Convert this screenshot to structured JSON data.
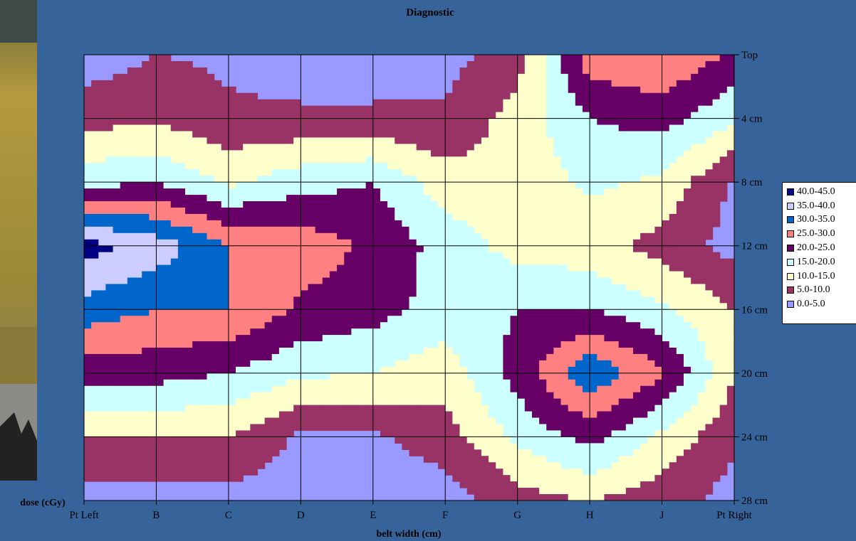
{
  "chart_data": {
    "type": "contour",
    "title": "Diagnostic",
    "xlabel": "belt width (cm)",
    "ylabel": "dose (cGy)",
    "x_categories": [
      "Pt Left",
      "B",
      "C",
      "D",
      "E",
      "F",
      "G",
      "H",
      "J",
      "Pt Right"
    ],
    "y_categories": [
      "Top",
      "4 cm",
      "8 cm",
      "12 cm",
      "16 cm",
      "20 cm",
      "24 cm",
      "28 cm"
    ],
    "legend": [
      {
        "label": "40.0-45.0",
        "color": "#000080"
      },
      {
        "label": "35.0-40.0",
        "color": "#ccccff"
      },
      {
        "label": "30.0-35.0",
        "color": "#0066cc"
      },
      {
        "label": "25.0-30.0",
        "color": "#ff8080"
      },
      {
        "label": "20.0-25.0",
        "color": "#660066"
      },
      {
        "label": "15.0-20.0",
        "color": "#ccffff"
      },
      {
        "label": "10.0-15.0",
        "color": "#ffffcc"
      },
      {
        "label": "5.0-10.0",
        "color": "#993366"
      },
      {
        "label": "0.0-5.0",
        "color": "#9999ff"
      }
    ],
    "values": [
      [
        2,
        5,
        4,
        2,
        2,
        3,
        8,
        28,
        30,
        24
      ],
      [
        8,
        9,
        6,
        6,
        6,
        6,
        12,
        20,
        22,
        16
      ],
      [
        18,
        20,
        14,
        18,
        20,
        12,
        12,
        16,
        14,
        4
      ],
      [
        42,
        38,
        30,
        28,
        24,
        18,
        13,
        12,
        8,
        3
      ],
      [
        33,
        30,
        30,
        24,
        22,
        18,
        20,
        20,
        16,
        10
      ],
      [
        22,
        22,
        20,
        16,
        15,
        12,
        22,
        34,
        26,
        10
      ],
      [
        10,
        10,
        10,
        4,
        4,
        8,
        16,
        22,
        14,
        6
      ],
      [
        3,
        3,
        3,
        2,
        2,
        2,
        8,
        10,
        7,
        3
      ]
    ],
    "zrange": [
      0,
      45
    ]
  }
}
